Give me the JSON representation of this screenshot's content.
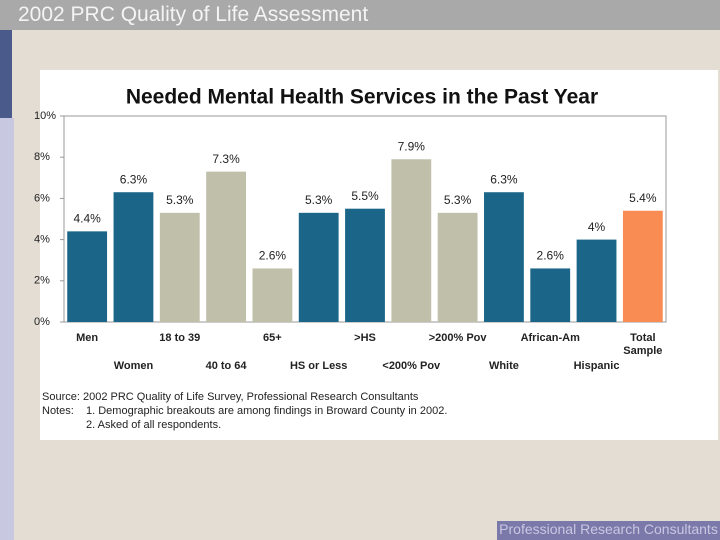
{
  "header": {
    "title": "2002 PRC Quality of Life Assessment"
  },
  "chart_data": {
    "type": "bar",
    "title": "Needed Mental Health Services in the Past Year",
    "categories": [
      "Men",
      "Women",
      "18 to 39",
      "40 to 64",
      "65+",
      "HS or Less",
      ">HS",
      "<200% Pov",
      ">200% Pov",
      "White",
      "African-Am",
      "Hispanic",
      "Total Sample"
    ],
    "values": [
      4.4,
      6.3,
      5.3,
      7.3,
      2.6,
      5.3,
      5.5,
      7.9,
      5.3,
      6.3,
      2.6,
      4,
      5.4
    ],
    "value_labels": [
      "4.4%",
      "6.3%",
      "5.3%",
      "7.3%",
      "2.6%",
      "5.3%",
      "5.5%",
      "7.9%",
      "5.3%",
      "6.3%",
      "2.6%",
      "4%",
      "5.4%"
    ],
    "colors": [
      "#1b6688",
      "#1b6688",
      "#c0c0aa",
      "#c0c0aa",
      "#c0c0aa",
      "#1b6688",
      "#1b6688",
      "#c0c0aa",
      "#c0c0aa",
      "#1b6688",
      "#1b6688",
      "#1b6688",
      "#f98c52"
    ],
    "ylim": [
      0,
      10
    ],
    "yticks": [
      {
        "value": 0,
        "label": "0%"
      },
      {
        "value": 2,
        "label": "2%"
      },
      {
        "value": 4,
        "label": "4%"
      },
      {
        "value": 6,
        "label": "6%"
      },
      {
        "value": 8,
        "label": "8%"
      },
      {
        "value": 10,
        "label": "10%"
      }
    ],
    "grid": false
  },
  "notes": {
    "source": "Source: 2002 PRC Quality of Life Survey, Professional Research Consultants",
    "notes_label": "Notes:",
    "note1": "1. Demographic breakouts are among findings in Broward County in 2002.",
    "note2": "2. Asked of all respondents."
  },
  "footer": {
    "brand": "Professional Research Consultants"
  }
}
